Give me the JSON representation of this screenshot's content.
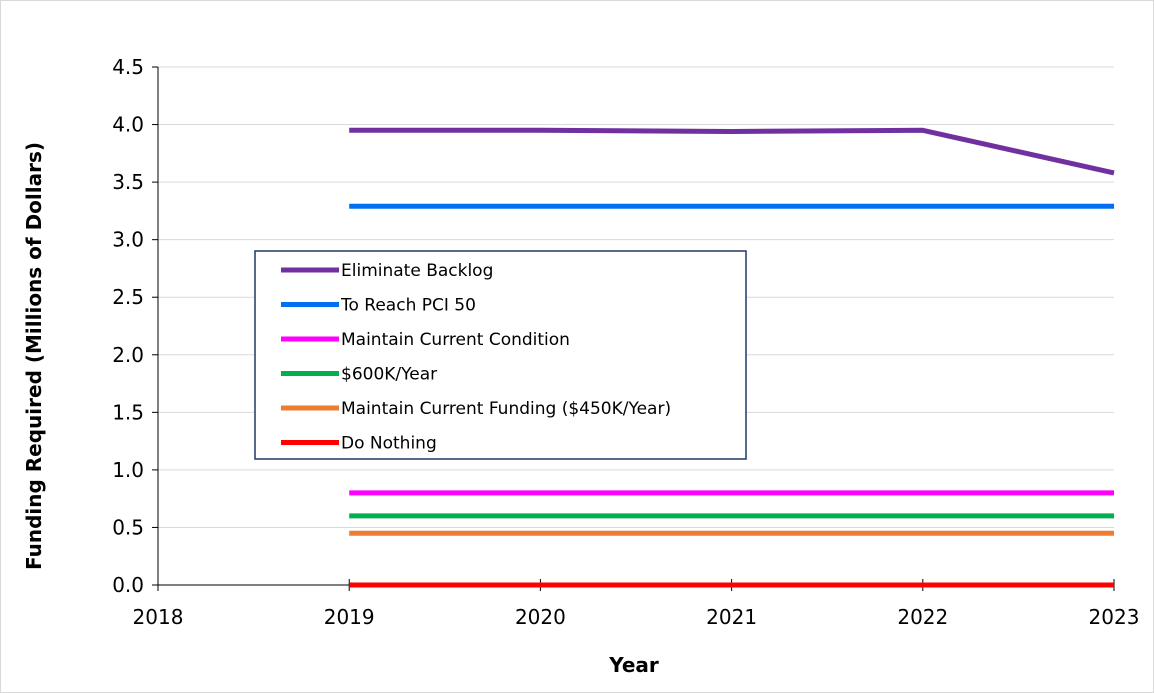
{
  "chart_data": {
    "type": "line",
    "title": "",
    "xlabel": "Year",
    "ylabel": "Funding Required (Millions of Dollars)",
    "xlim": [
      2018,
      2023
    ],
    "ylim": [
      0,
      4.5
    ],
    "x_ticks": [
      "2018",
      "2019",
      "2020",
      "2021",
      "2022",
      "2023"
    ],
    "y_ticks": [
      "0.0",
      "0.5",
      "1.0",
      "1.5",
      "2.0",
      "2.5",
      "3.0",
      "3.5",
      "4.0",
      "4.5"
    ],
    "grid": "horizontal",
    "legend_position": "center-left",
    "x": [
      2019,
      2020,
      2021,
      2022,
      2023
    ],
    "series": [
      {
        "name": "Eliminate Backlog",
        "color": "#7030A0",
        "values": [
          3.95,
          3.95,
          3.94,
          3.95,
          3.58
        ]
      },
      {
        "name": "To Reach PCI 50",
        "color": "#0070F0",
        "values": [
          3.29,
          3.29,
          3.29,
          3.29,
          3.29
        ]
      },
      {
        "name": "Maintain Current Condition",
        "color": "#FF00FF",
        "values": [
          0.8,
          0.8,
          0.8,
          0.8,
          0.8
        ]
      },
      {
        "name": "$600K/Year",
        "color": "#00B050",
        "values": [
          0.6,
          0.6,
          0.6,
          0.6,
          0.6
        ]
      },
      {
        "name": "Maintain Current Funding ($450K/Year)",
        "color": "#ED7D31",
        "values": [
          0.45,
          0.45,
          0.45,
          0.45,
          0.45
        ]
      },
      {
        "name": "Do Nothing",
        "color": "#FF0000",
        "values": [
          0.0,
          0.0,
          0.0,
          0.0,
          0.0
        ]
      }
    ]
  }
}
